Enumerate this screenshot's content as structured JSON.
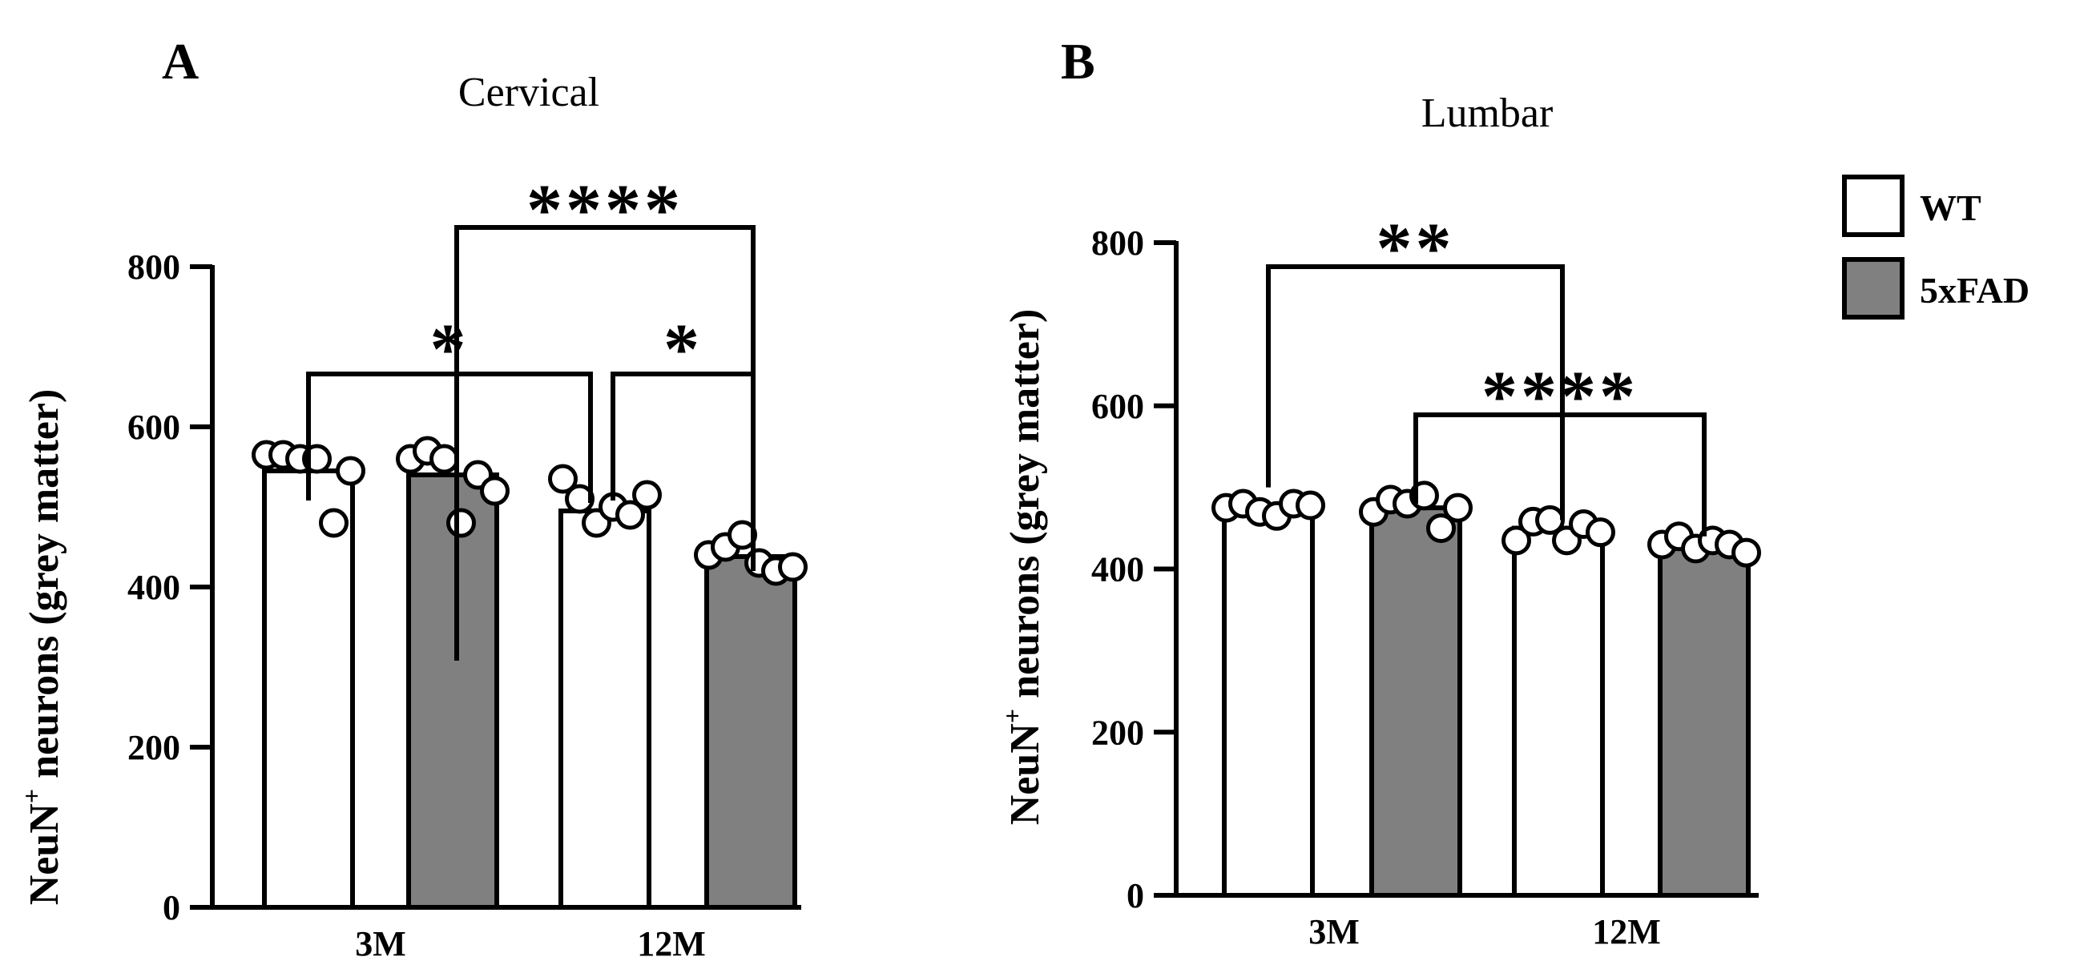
{
  "figure": {
    "legend": [
      {
        "label": "WT",
        "fill": "#ffffff"
      },
      {
        "label": "5xFAD",
        "fill": "#808080"
      }
    ]
  },
  "chart_data": [
    {
      "type": "bar",
      "panel": "A",
      "title": "Cervical",
      "ylabel": "NeuN",
      "ylabel_sup": "+",
      "ylabel_rest": " neurons (grey matter)",
      "ylim": [
        0,
        800
      ],
      "yticks": [
        "0",
        "200",
        "400",
        "600",
        "800"
      ],
      "categories": [
        "3M",
        "12M"
      ],
      "series": [
        {
          "name": "WT",
          "values": [
            545,
            495
          ],
          "points": [
            [
              565,
              565,
              560,
              560,
              480,
              545
            ],
            [
              535,
              510,
              480,
              500,
              490,
              515
            ]
          ]
        },
        {
          "name": "5xFAD",
          "values": [
            540,
            438
          ],
          "points": [
            [
              560,
              570,
              560,
              480,
              540,
              520
            ],
            [
              440,
              450,
              465,
              430,
              420,
              425
            ]
          ]
        }
      ],
      "significance": [
        {
          "from": 1,
          "to": 3,
          "label": "****"
        },
        {
          "from": 0,
          "to": 2,
          "label": "*"
        },
        {
          "from": 2,
          "to": 3,
          "label": "*"
        }
      ]
    },
    {
      "type": "bar",
      "panel": "B",
      "title": "Lumbar",
      "ylabel": "NeuN",
      "ylabel_sup": "+",
      "ylabel_rest": " neurons (grey matter)",
      "ylim": [
        0,
        800
      ],
      "yticks": [
        "0",
        "200",
        "400",
        "600",
        "800"
      ],
      "categories": [
        "3M",
        "12M"
      ],
      "series": [
        {
          "name": "WT",
          "values": [
            475,
            450
          ],
          "points": [
            [
              475,
              480,
              470,
              465,
              480,
              478
            ],
            [
              435,
              458,
              460,
              435,
              455,
              445
            ]
          ]
        },
        {
          "name": "5xFAD",
          "values": [
            475,
            430
          ],
          "points": [
            [
              470,
              485,
              480,
              490,
              450,
              475
            ],
            [
              430,
              440,
              425,
              435,
              430,
              420
            ]
          ]
        }
      ],
      "significance": [
        {
          "from": 0,
          "to": 2,
          "label": "**"
        },
        {
          "from": 1,
          "to": 3,
          "label": "****"
        }
      ]
    }
  ]
}
